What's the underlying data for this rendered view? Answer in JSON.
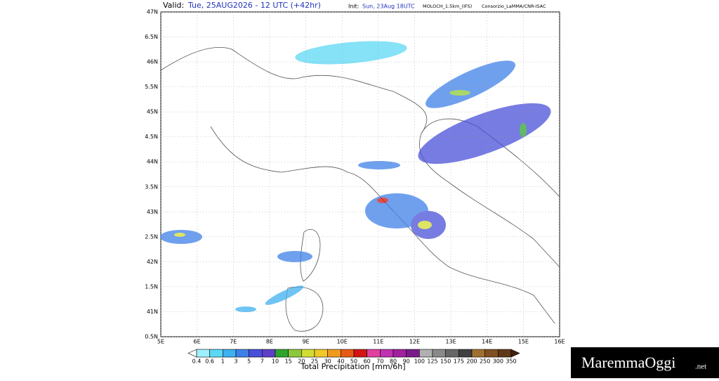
{
  "header": {
    "valid_label": "Valid:",
    "valid_time": "Tue, 25AUG2026 - 12 UTC (+42hr)",
    "init_label": "Init:",
    "init_time": "Sun, 23Aug 18UTC",
    "model": "MOLOCH_1.5km_(IFS)",
    "credit": "Consorzio_LaMMA/CNR-ISAC"
  },
  "map": {
    "lat_labels": [
      "47N",
      "6.5N",
      "46N",
      "5.5N",
      "45N",
      "4.5N",
      "44N",
      "3.5N",
      "43N",
      "2.5N",
      "42N",
      "1.5N",
      "41N",
      "0.5N"
    ],
    "lon_labels": [
      "5E",
      "6E",
      "7E",
      "8E",
      "9E",
      "10E",
      "11E",
      "12E",
      "13E",
      "14E",
      "15E",
      "16E"
    ]
  },
  "colorbar": {
    "title": "Total Precipitation [mm/6h]",
    "labels": [
      "0.4",
      "0.6",
      "1",
      "3",
      "5",
      "7",
      "10",
      "15",
      "20",
      "25",
      "30",
      "40",
      "50",
      "60",
      "70",
      "80",
      "90",
      "100",
      "125",
      "150",
      "175",
      "200",
      "250",
      "300",
      "350"
    ],
    "colors": [
      "#ffffff",
      "#9ff0ff",
      "#5cd8f5",
      "#3fb0f0",
      "#3f80e8",
      "#4a50d8",
      "#6040c8",
      "#2da52d",
      "#8cc83c",
      "#d2dc32",
      "#f0c828",
      "#f09a1e",
      "#e85a14",
      "#d21414",
      "#e040a0",
      "#c030b0",
      "#a020a0",
      "#7a1a8a",
      "#b0b0b0",
      "#8a8a8a",
      "#666666",
      "#404040",
      "#a07030",
      "#805020",
      "#603818",
      "#402010"
    ]
  },
  "logo": {
    "name": "MaremmaOggi",
    "suffix": ".net"
  }
}
